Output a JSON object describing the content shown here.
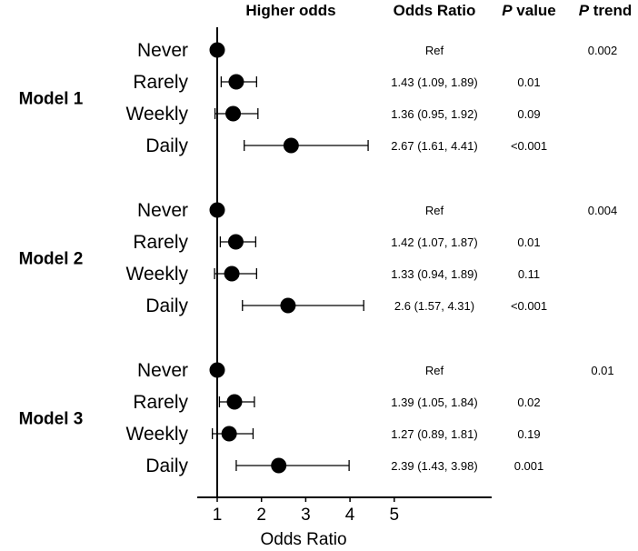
{
  "chart_data": {
    "type": "forest",
    "header": {
      "direction_label": "Higher odds",
      "or_col": "Odds Ratio",
      "p_col_italic": "P",
      "p_col_rest": " value",
      "ptrend_col_italic": "P",
      "ptrend_col_rest": " trend"
    },
    "xlabel": "Odds Ratio",
    "xticks": [
      "1",
      "2",
      "3",
      "4",
      "5"
    ],
    "xlim": [
      0.55,
      7.2
    ],
    "reference_line": 1,
    "models": [
      {
        "label": "Model 1",
        "p_trend": "0.002",
        "rows": [
          {
            "category": "Never",
            "or": 1.0,
            "lo": 1.0,
            "hi": 1.0,
            "ci_text": "Ref",
            "p": ""
          },
          {
            "category": "Rarely",
            "or": 1.43,
            "lo": 1.09,
            "hi": 1.89,
            "ci_text": "1.43 (1.09, 1.89)",
            "p": "0.01"
          },
          {
            "category": "Weekly",
            "or": 1.36,
            "lo": 0.95,
            "hi": 1.92,
            "ci_text": "1.36 (0.95, 1.92)",
            "p": "0.09"
          },
          {
            "category": "Daily",
            "or": 2.67,
            "lo": 1.61,
            "hi": 4.41,
            "ci_text": "2.67 (1.61, 4.41)",
            "p": "<0.001"
          }
        ]
      },
      {
        "label": "Model 2",
        "p_trend": "0.004",
        "rows": [
          {
            "category": "Never",
            "or": 1.0,
            "lo": 1.0,
            "hi": 1.0,
            "ci_text": "Ref",
            "p": ""
          },
          {
            "category": "Rarely",
            "or": 1.42,
            "lo": 1.07,
            "hi": 1.87,
            "ci_text": "1.42 (1.07, 1.87)",
            "p": "0.01"
          },
          {
            "category": "Weekly",
            "or": 1.33,
            "lo": 0.94,
            "hi": 1.89,
            "ci_text": "1.33 (0.94, 1.89)",
            "p": "0.11"
          },
          {
            "category": "Daily",
            "or": 2.6,
            "lo": 1.57,
            "hi": 4.31,
            "ci_text": "2.6 (1.57, 4.31)",
            "p": "<0.001"
          }
        ]
      },
      {
        "label": "Model 3",
        "p_trend": "0.01",
        "rows": [
          {
            "category": "Never",
            "or": 1.0,
            "lo": 1.0,
            "hi": 1.0,
            "ci_text": "Ref",
            "p": ""
          },
          {
            "category": "Rarely",
            "or": 1.39,
            "lo": 1.05,
            "hi": 1.84,
            "ci_text": "1.39 (1.05, 1.84)",
            "p": "0.02"
          },
          {
            "category": "Weekly",
            "or": 1.27,
            "lo": 0.89,
            "hi": 1.81,
            "ci_text": "1.27 (0.89, 1.81)",
            "p": "0.19"
          },
          {
            "category": "Daily",
            "or": 2.39,
            "lo": 1.43,
            "hi": 3.98,
            "ci_text": "2.39 (1.43, 3.98)",
            "p": "0.001"
          }
        ]
      }
    ],
    "colors": {
      "ink": "#000000"
    }
  }
}
